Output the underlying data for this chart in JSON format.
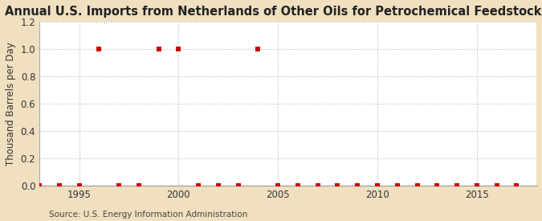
{
  "title": "Annual U.S. Imports from Netherlands of Other Oils for Petrochemical Feedstock Use",
  "ylabel": "Thousand Barrels per Day",
  "source": "Source: U.S. Energy Information Administration",
  "fig_background_color": "#f0e0c0",
  "plot_background_color": "#ffffff",
  "data_color": "#cc0000",
  "grid_color": "#bbbbbb",
  "spine_color": "#999999",
  "xlim": [
    1993,
    2018
  ],
  "ylim": [
    0.0,
    1.2
  ],
  "xticks": [
    1995,
    2000,
    2005,
    2010,
    2015
  ],
  "yticks": [
    0.0,
    0.2,
    0.4,
    0.6,
    0.8,
    1.0,
    1.2
  ],
  "years": [
    1993,
    1994,
    1995,
    1996,
    1997,
    1998,
    1999,
    2000,
    2001,
    2002,
    2003,
    2004,
    2005,
    2006,
    2007,
    2008,
    2009,
    2010,
    2011,
    2012,
    2013,
    2014,
    2015,
    2016,
    2017
  ],
  "values": [
    0.0,
    0.0,
    0.0,
    1.0,
    0.0,
    0.0,
    1.0,
    1.0,
    0.0,
    0.0,
    0.0,
    1.0,
    0.0,
    0.0,
    0.0,
    0.0,
    0.0,
    0.0,
    0.0,
    0.0,
    0.0,
    0.0,
    0.0,
    0.0,
    0.0
  ],
  "marker_size": 16,
  "title_fontsize": 10.5,
  "axis_fontsize": 8.5,
  "tick_fontsize": 8.5,
  "source_fontsize": 7.5
}
